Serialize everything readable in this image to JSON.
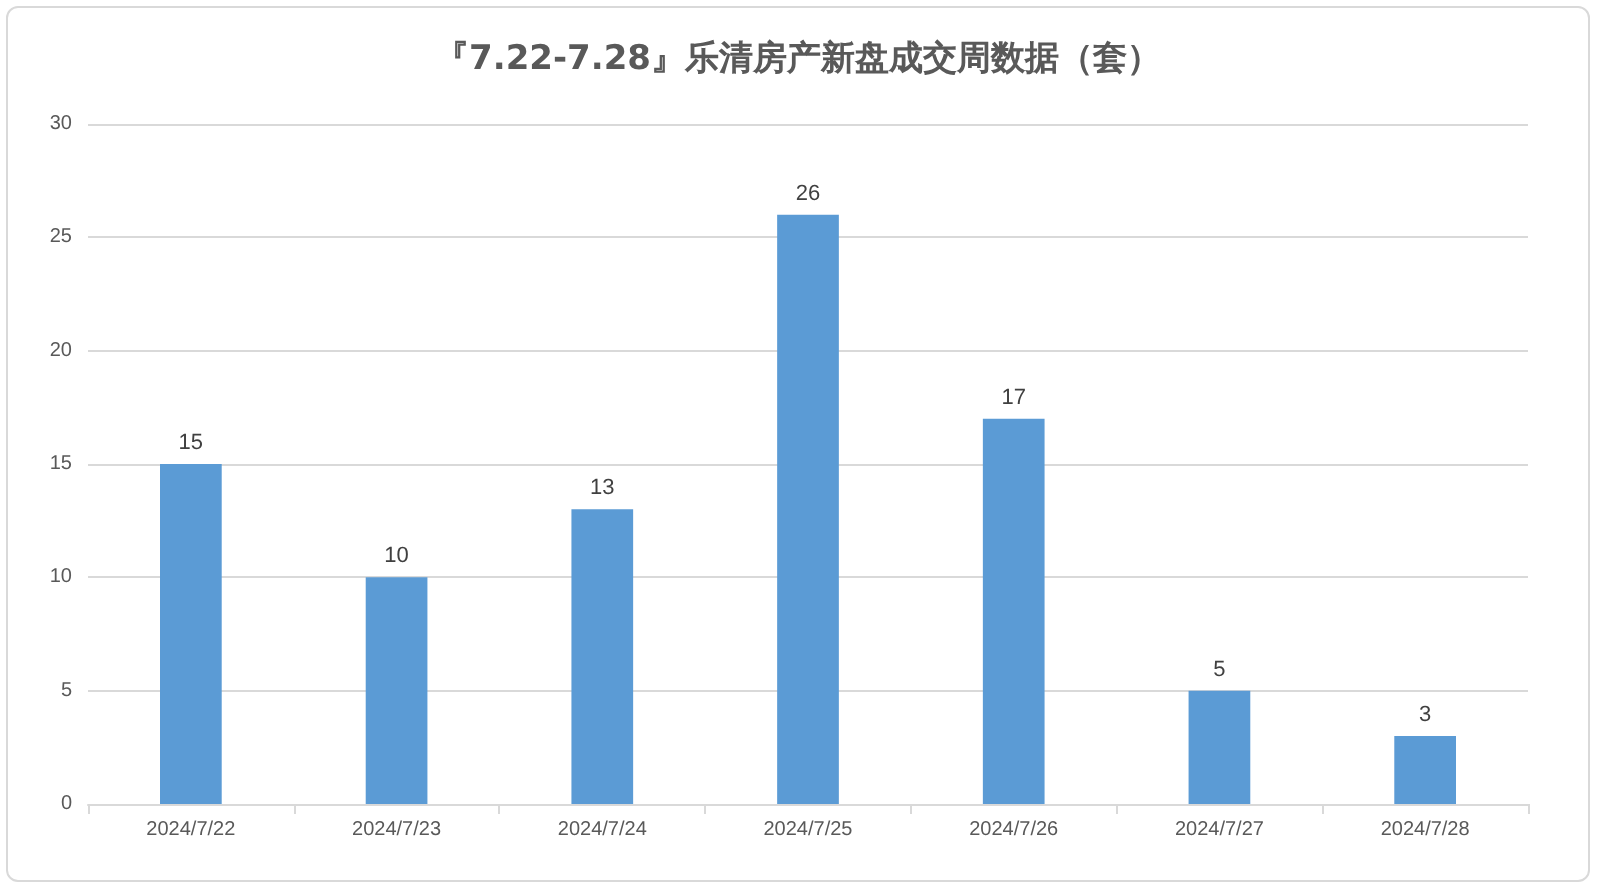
{
  "chart_data": {
    "type": "bar",
    "title": "『7.22-7.28』乐清房产新盘成交周数据（套）",
    "categories": [
      "2024/7/22",
      "2024/7/23",
      "2024/7/24",
      "2024/7/25",
      "2024/7/26",
      "2024/7/27",
      "2024/7/28"
    ],
    "values": [
      15,
      10,
      13,
      26,
      17,
      5,
      3
    ],
    "color": "#5b9bd5",
    "ylim": [
      0,
      30
    ],
    "yticks": [
      0,
      5,
      10,
      15,
      20,
      25,
      30
    ],
    "grid": "y",
    "data_labels": true
  }
}
